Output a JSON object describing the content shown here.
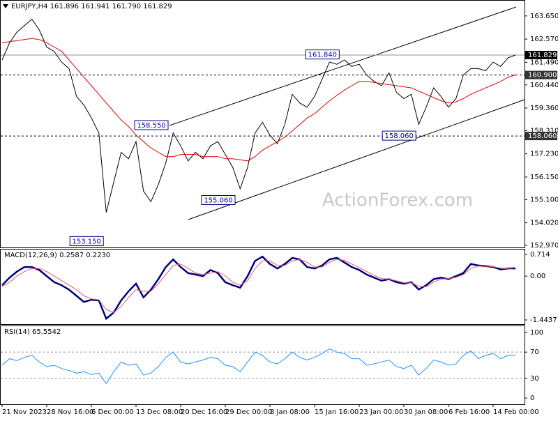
{
  "chart_data": [
    {
      "type": "line",
      "title": "EURJPY,H4  161.896 161.941 161.790 161.829",
      "watermark": "ActionForex.com",
      "ylim": [
        152.87,
        164.36
      ],
      "yticks": [
        {
          "value": 163.65,
          "label": "163.650"
        },
        {
          "value": 162.57,
          "label": "162.570"
        },
        {
          "value": 161.49,
          "label": "161.490"
        },
        {
          "value": 160.44,
          "label": "160.440"
        },
        {
          "value": 159.36,
          "label": "159.360"
        },
        {
          "value": 158.31,
          "label": "158.310"
        },
        {
          "value": 157.23,
          "label": "157.230"
        },
        {
          "value": 156.15,
          "label": "156.150"
        },
        {
          "value": 155.1,
          "label": "155.100"
        },
        {
          "value": 154.02,
          "label": "154.020"
        },
        {
          "value": 152.97,
          "label": "152.970"
        }
      ],
      "series": [
        {
          "name": "EURJPY",
          "color": "#000000",
          "values": [
            161.6,
            162.4,
            162.9,
            163.2,
            163.5,
            163.0,
            162.2,
            162.0,
            161.5,
            161.2,
            159.9,
            159.5,
            158.9,
            158.2,
            154.5,
            155.9,
            157.3,
            157.0,
            157.8,
            155.5,
            155.0,
            155.8,
            156.8,
            158.2,
            157.6,
            156.9,
            157.3,
            157.0,
            157.6,
            157.8,
            157.2,
            156.6,
            155.6,
            156.6,
            158.2,
            158.7,
            158.1,
            157.7,
            158.6,
            160.0,
            159.6,
            159.4,
            159.9,
            160.7,
            161.5,
            161.4,
            161.6,
            161.3,
            161.4,
            160.9,
            160.6,
            160.4,
            161.0,
            160.1,
            159.8,
            160.0,
            158.6,
            159.4,
            160.3,
            159.9,
            159.4,
            159.8,
            160.9,
            161.2,
            161.2,
            161.1,
            161.5,
            161.3,
            161.7,
            161.829
          ]
        },
        {
          "name": "MA",
          "color": "#dd0000",
          "values": [
            162.4,
            162.45,
            162.5,
            162.55,
            162.6,
            162.55,
            162.4,
            162.2,
            162.0,
            161.6,
            161.2,
            160.8,
            160.4,
            160.0,
            159.6,
            159.2,
            158.8,
            158.5,
            158.1,
            157.8,
            157.5,
            157.3,
            157.1,
            157.1,
            157.2,
            157.2,
            157.2,
            157.1,
            157.1,
            157.1,
            157.0,
            157.0,
            156.95,
            156.9,
            157.1,
            157.4,
            157.6,
            157.8,
            158.0,
            158.3,
            158.6,
            158.9,
            159.1,
            159.4,
            159.7,
            159.95,
            160.2,
            160.4,
            160.6,
            160.6,
            160.55,
            160.5,
            160.45,
            160.4,
            160.35,
            160.3,
            160.15,
            160.0,
            159.85,
            159.7,
            159.6,
            159.65,
            159.8,
            160.0,
            160.15,
            160.3,
            160.45,
            160.6,
            160.8,
            160.9
          ]
        }
      ],
      "levels": [
        {
          "value": 161.829,
          "label": "161.829",
          "style": "solid"
        },
        {
          "value": 160.9,
          "label": "160.900",
          "style": "dashed"
        },
        {
          "value": 158.06,
          "label": "158.060",
          "style": "dashed"
        }
      ],
      "annotations": [
        {
          "label": "153.150",
          "value": 153.15,
          "x": 13.8
        },
        {
          "label": "158.550",
          "value": 158.55,
          "x": 22.5
        },
        {
          "label": "155.060",
          "value": 155.06,
          "x": 31.5
        },
        {
          "label": "161.840",
          "value": 161.84,
          "x": 45.5
        },
        {
          "label": "158.060",
          "value": 158.06,
          "x": 55.8
        }
      ]
    },
    {
      "type": "line",
      "title": "MACD(12,26,9) 0.2587 0.2230",
      "ylim": [
        -1.581,
        0.875
      ],
      "yticks": [
        0.714,
        {
          "value": 0,
          "label": "0.00"
        },
        -1.4437
      ],
      "series": [
        {
          "name": "MACD",
          "color": "#000080",
          "values": [
            -0.3,
            -0.05,
            0.15,
            0.3,
            0.3,
            0.2,
            0.0,
            -0.2,
            -0.3,
            -0.45,
            -0.65,
            -0.85,
            -0.78,
            -0.8,
            -1.4,
            -1.2,
            -0.8,
            -0.5,
            -0.25,
            -0.7,
            -0.45,
            -0.1,
            0.3,
            0.55,
            0.3,
            0.1,
            0.05,
            0.0,
            0.2,
            0.1,
            -0.2,
            -0.3,
            -0.38,
            0.0,
            0.5,
            0.64,
            0.4,
            0.25,
            0.4,
            0.6,
            0.55,
            0.3,
            0.25,
            0.35,
            0.55,
            0.6,
            0.45,
            0.3,
            0.2,
            0.05,
            -0.05,
            -0.15,
            -0.1,
            -0.2,
            -0.25,
            -0.2,
            -0.44,
            -0.3,
            -0.1,
            -0.05,
            -0.1,
            0.0,
            0.1,
            0.4,
            0.35,
            0.33,
            0.3,
            0.22,
            0.25,
            0.2587
          ]
        },
        {
          "name": "Signal",
          "color": "#e06060",
          "values": [
            -0.35,
            -0.2,
            0.0,
            0.15,
            0.25,
            0.25,
            0.15,
            0.0,
            -0.15,
            -0.3,
            -0.45,
            -0.65,
            -0.75,
            -0.78,
            -1.1,
            -1.2,
            -1.0,
            -0.7,
            -0.45,
            -0.5,
            -0.5,
            -0.25,
            0.05,
            0.35,
            0.4,
            0.25,
            0.1,
            0.05,
            0.1,
            0.15,
            0.0,
            -0.2,
            -0.3,
            -0.15,
            0.25,
            0.5,
            0.5,
            0.35,
            0.35,
            0.5,
            0.55,
            0.45,
            0.3,
            0.3,
            0.45,
            0.55,
            0.52,
            0.4,
            0.28,
            0.15,
            0.02,
            -0.08,
            -0.1,
            -0.15,
            -0.22,
            -0.22,
            -0.33,
            -0.35,
            -0.2,
            -0.1,
            -0.08,
            -0.04,
            0.05,
            0.25,
            0.33,
            0.33,
            0.31,
            0.26,
            0.24,
            0.223
          ]
        }
      ]
    },
    {
      "type": "line",
      "title": "RSI(14) 65.5542",
      "ylim": [
        -9.5,
        109.5
      ],
      "yticks": [
        100,
        70,
        30,
        0
      ],
      "dashed_levels": [
        70,
        30
      ],
      "categories": [
        "21 Nov 2023",
        null,
        null,
        null,
        null,
        null,
        "28 Nov 16:00",
        null,
        null,
        null,
        null,
        null,
        "6 Dec 00:00",
        null,
        null,
        null,
        null,
        null,
        "13 Dec 08:00",
        null,
        null,
        null,
        null,
        null,
        "20 Dec 16:00",
        null,
        null,
        null,
        null,
        null,
        "29 Dec 00:00",
        null,
        null,
        null,
        null,
        null,
        "8 Jan 08:00",
        null,
        null,
        null,
        null,
        null,
        "15 Jan 16:00",
        null,
        null,
        null,
        null,
        null,
        "23 Jan 00:00",
        null,
        null,
        null,
        null,
        null,
        "30 Jan 08:00",
        null,
        null,
        null,
        null,
        null,
        "6 Feb 16:00",
        null,
        null,
        null,
        null,
        null,
        "14 Feb 00:00",
        null,
        null,
        null
      ],
      "series": [
        {
          "name": "RSI",
          "color": "#1e90ff",
          "values": [
            50,
            60,
            57,
            62,
            65,
            55,
            48,
            50,
            45,
            42,
            38,
            40,
            36,
            38,
            22,
            40,
            55,
            50,
            52,
            35,
            38,
            48,
            62,
            70,
            55,
            52,
            55,
            58,
            62,
            60,
            50,
            48,
            40,
            55,
            70,
            65,
            55,
            52,
            60,
            70,
            62,
            58,
            62,
            68,
            75,
            70,
            68,
            60,
            60,
            50,
            52,
            55,
            58,
            48,
            45,
            50,
            35,
            45,
            58,
            55,
            50,
            52,
            65,
            72,
            60,
            65,
            68,
            60,
            65,
            65.5542
          ]
        }
      ]
    }
  ]
}
